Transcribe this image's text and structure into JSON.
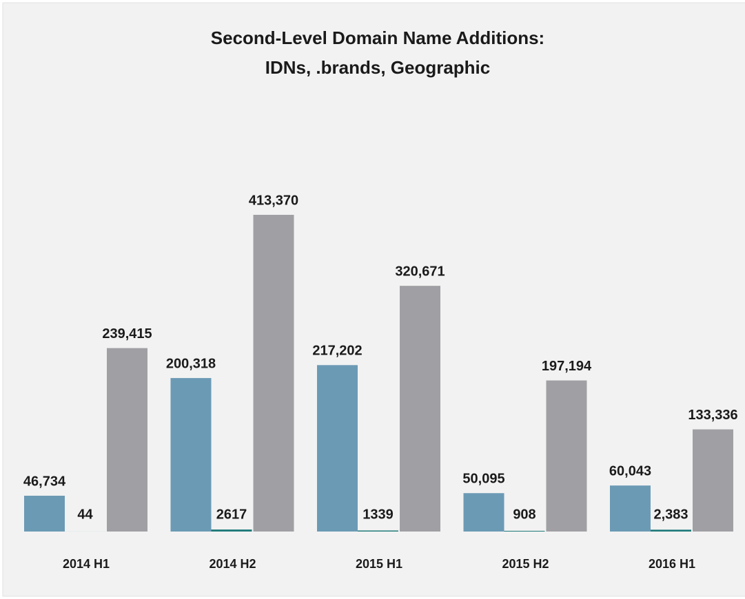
{
  "chart_data": {
    "type": "bar",
    "title": [
      "Second-Level Domain Name Additions:",
      "IDNs, .brands, Geographic"
    ],
    "categories": [
      "2014 H1",
      "2014 H2",
      "2015 H1",
      "2015 H2",
      "2016 H1"
    ],
    "series": [
      {
        "color": "#6b9ab5",
        "values": [
          46734,
          200318,
          217202,
          50095,
          60043
        ],
        "value_labels": [
          "46,734",
          "200,318",
          "217,202",
          "50,095",
          "60,043"
        ]
      },
      {
        "color": "#1f7a7a",
        "values": [
          44,
          2617,
          1339,
          908,
          2383
        ],
        "value_labels": [
          "44",
          "2617",
          "1339",
          "908",
          "2,383"
        ]
      },
      {
        "color": "#a0a0a4",
        "values": [
          239415,
          413370,
          320671,
          197194,
          133336
        ],
        "value_labels": [
          "239,415",
          "413,370",
          "320,671",
          "197,194",
          "133,336"
        ]
      }
    ]
  }
}
